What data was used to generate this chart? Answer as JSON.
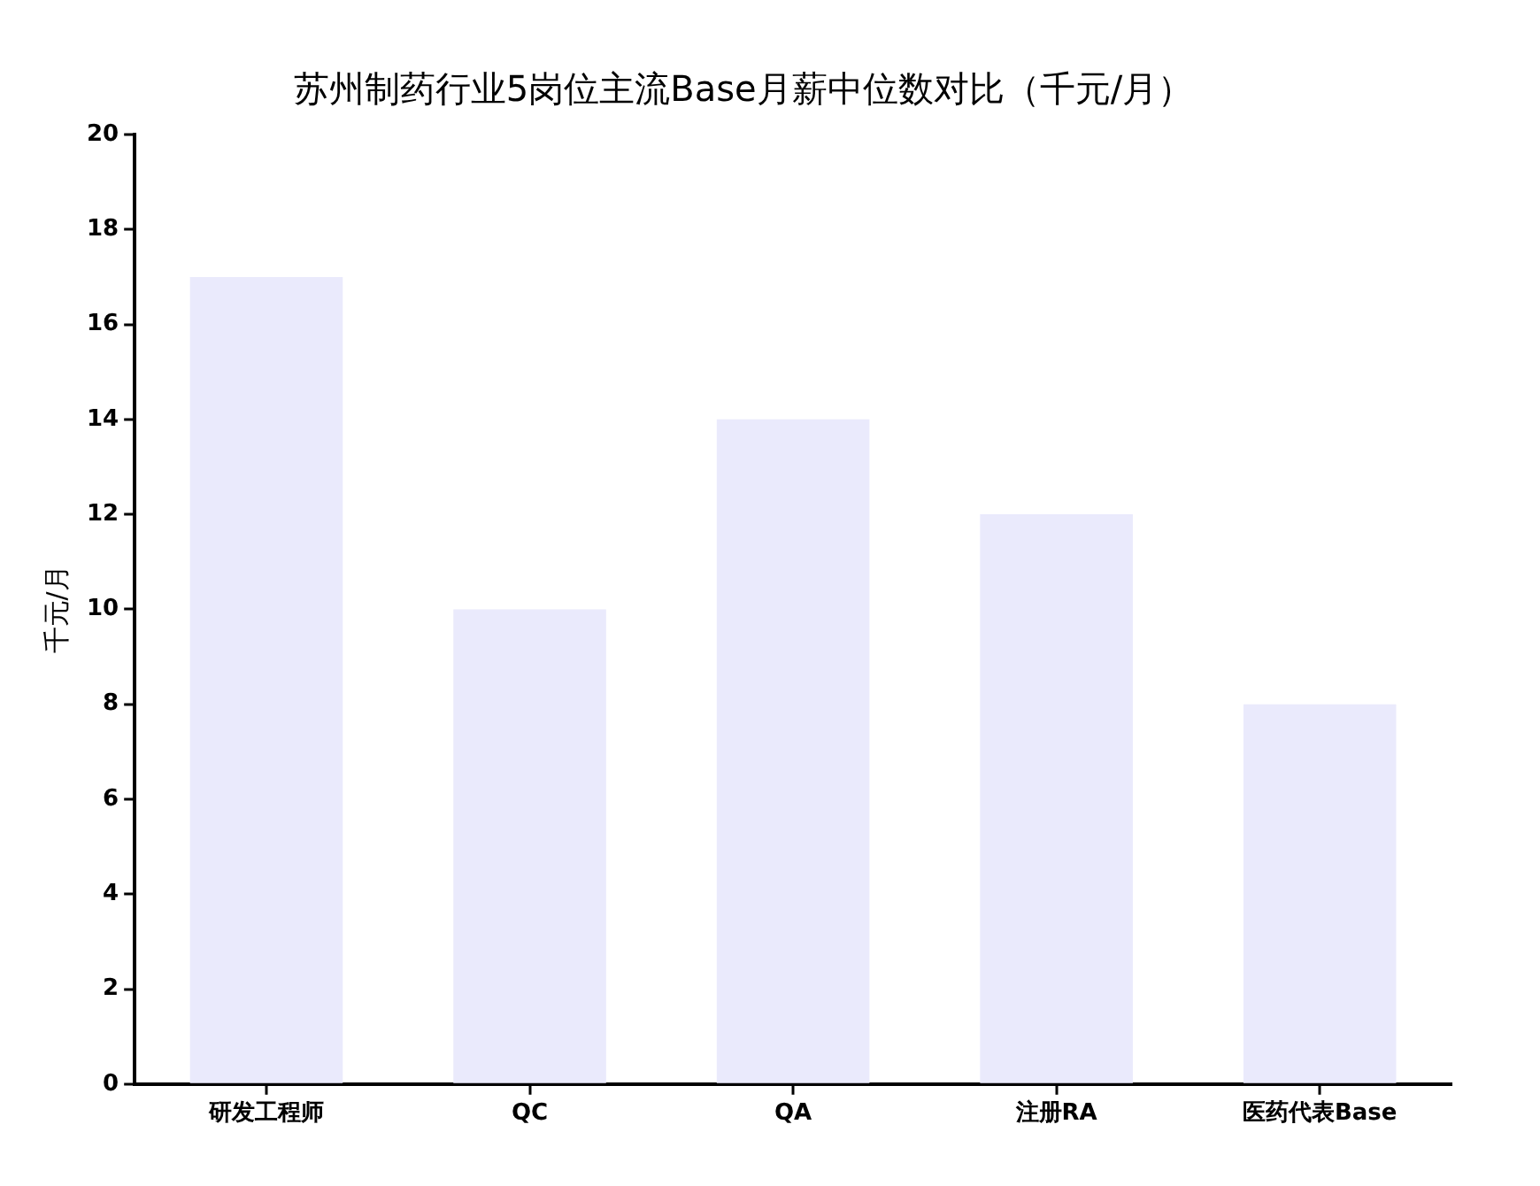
{
  "chart_data": {
    "type": "bar",
    "title": "苏州制药行业5岗位主流Base月薪中位数对比（千元/月）",
    "ylabel": "千元/月",
    "categories": [
      "研发工程师",
      "QC",
      "QA",
      "注册RA",
      "医药代表Base"
    ],
    "values": [
      17,
      10,
      14,
      12,
      8
    ],
    "color": "#eaeafc",
    "ylim": [
      0,
      20
    ],
    "yticks": [
      0,
      2,
      4,
      6,
      8,
      10,
      12,
      14,
      16,
      18,
      20
    ],
    "grid": false,
    "legend": false
  }
}
